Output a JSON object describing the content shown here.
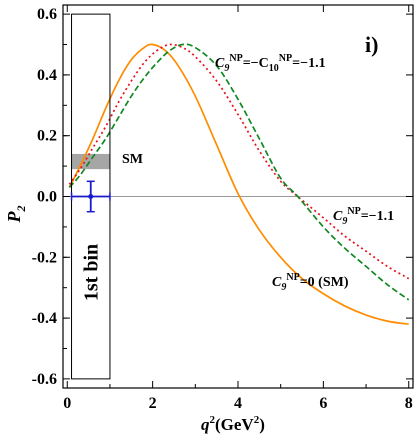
{
  "chart_data": {
    "type": "line",
    "panel_label": "i)",
    "ylabel_main": "P",
    "ylabel_sub": "2",
    "xlabel_main": "q",
    "xlabel_sup": "2",
    "xlabel_unit_open": "(GeV",
    "xlabel_unit_sup": "2",
    "xlabel_unit_close": ")",
    "xlim": [
      -0.1,
      8.1
    ],
    "ylim": [
      -0.63,
      0.63
    ],
    "xticks": [
      0,
      2,
      4,
      6,
      8
    ],
    "yticks": [
      -0.6,
      -0.4,
      -0.2,
      0.0,
      0.2,
      0.4,
      0.6
    ],
    "ytick_labels": [
      "-0.6",
      "-0.4",
      "-0.2",
      "0.0",
      "0.2",
      "0.4",
      "0.6"
    ],
    "xtick_labels": [
      "0",
      "2",
      "4",
      "6",
      "8"
    ],
    "series": [
      {
        "name": "C9NP=0 (SM)",
        "color": "#ff8c00",
        "style": "solid",
        "x": [
          0.05,
          0.3,
          0.6,
          0.9,
          1.2,
          1.5,
          1.8,
          2.0,
          2.3,
          2.6,
          3.0,
          3.5,
          4.0,
          4.5,
          5.0,
          5.5,
          6.0,
          6.5,
          7.0,
          7.5,
          8.0
        ],
        "y": [
          0.03,
          0.1,
          0.19,
          0.29,
          0.38,
          0.45,
          0.49,
          0.5,
          0.48,
          0.43,
          0.33,
          0.17,
          0.01,
          -0.11,
          -0.2,
          -0.27,
          -0.32,
          -0.36,
          -0.39,
          -0.41,
          -0.42
        ]
      },
      {
        "name": "C9NP=-1.1",
        "color": "#e8101a",
        "style": "dotted",
        "x": [
          0.05,
          0.3,
          0.6,
          0.9,
          1.2,
          1.5,
          1.8,
          2.1,
          2.4,
          2.7,
          3.0,
          3.5,
          4.0,
          4.5,
          5.0,
          5.4,
          6.0,
          6.5,
          7.0,
          7.5,
          8.0
        ],
        "y": [
          0.04,
          0.09,
          0.16,
          0.23,
          0.31,
          0.38,
          0.44,
          0.48,
          0.5,
          0.49,
          0.46,
          0.38,
          0.27,
          0.15,
          0.05,
          0.0,
          -0.07,
          -0.13,
          -0.18,
          -0.23,
          -0.27
        ]
      },
      {
        "name": "C9NP=-C10NP=-1.1",
        "color": "#118822",
        "style": "dashed",
        "x": [
          0.05,
          0.3,
          0.6,
          0.9,
          1.2,
          1.5,
          1.8,
          2.1,
          2.4,
          2.7,
          3.0,
          3.5,
          4.0,
          4.5,
          5.0,
          5.4,
          6.0,
          6.5,
          7.0,
          7.5,
          8.0
        ],
        "y": [
          0.03,
          0.07,
          0.13,
          0.19,
          0.26,
          0.33,
          0.39,
          0.44,
          0.48,
          0.5,
          0.49,
          0.43,
          0.32,
          0.19,
          0.06,
          0.0,
          -0.1,
          -0.17,
          -0.23,
          -0.29,
          -0.34
        ]
      }
    ],
    "sm_band": {
      "x": [
        0.1,
        1.0
      ],
      "y": [
        0.09,
        0.14
      ],
      "color": "#888888"
    },
    "bin_box": {
      "x": [
        0.1,
        1.0
      ],
      "y": [
        -0.6,
        0.6
      ],
      "label": "1st bin"
    },
    "data_point": {
      "x": 0.55,
      "y": 0.0,
      "xerr": 0.45,
      "yerr": 0.05,
      "color": "#1a1acc"
    },
    "annotations": {
      "sm": "SM",
      "green": {
        "c": "C",
        "sub": "9",
        "sup1": "NP",
        "mid": "=−C",
        "sub2": "10",
        "sup2": "NP",
        "val": "=−1.1"
      },
      "red": {
        "c": "C",
        "sub": "9",
        "sup": "NP",
        "val": "=−1.1"
      },
      "orange": {
        "c": "C",
        "sub": "9",
        "sup": "NP",
        "val": "=0 (SM)"
      }
    }
  }
}
